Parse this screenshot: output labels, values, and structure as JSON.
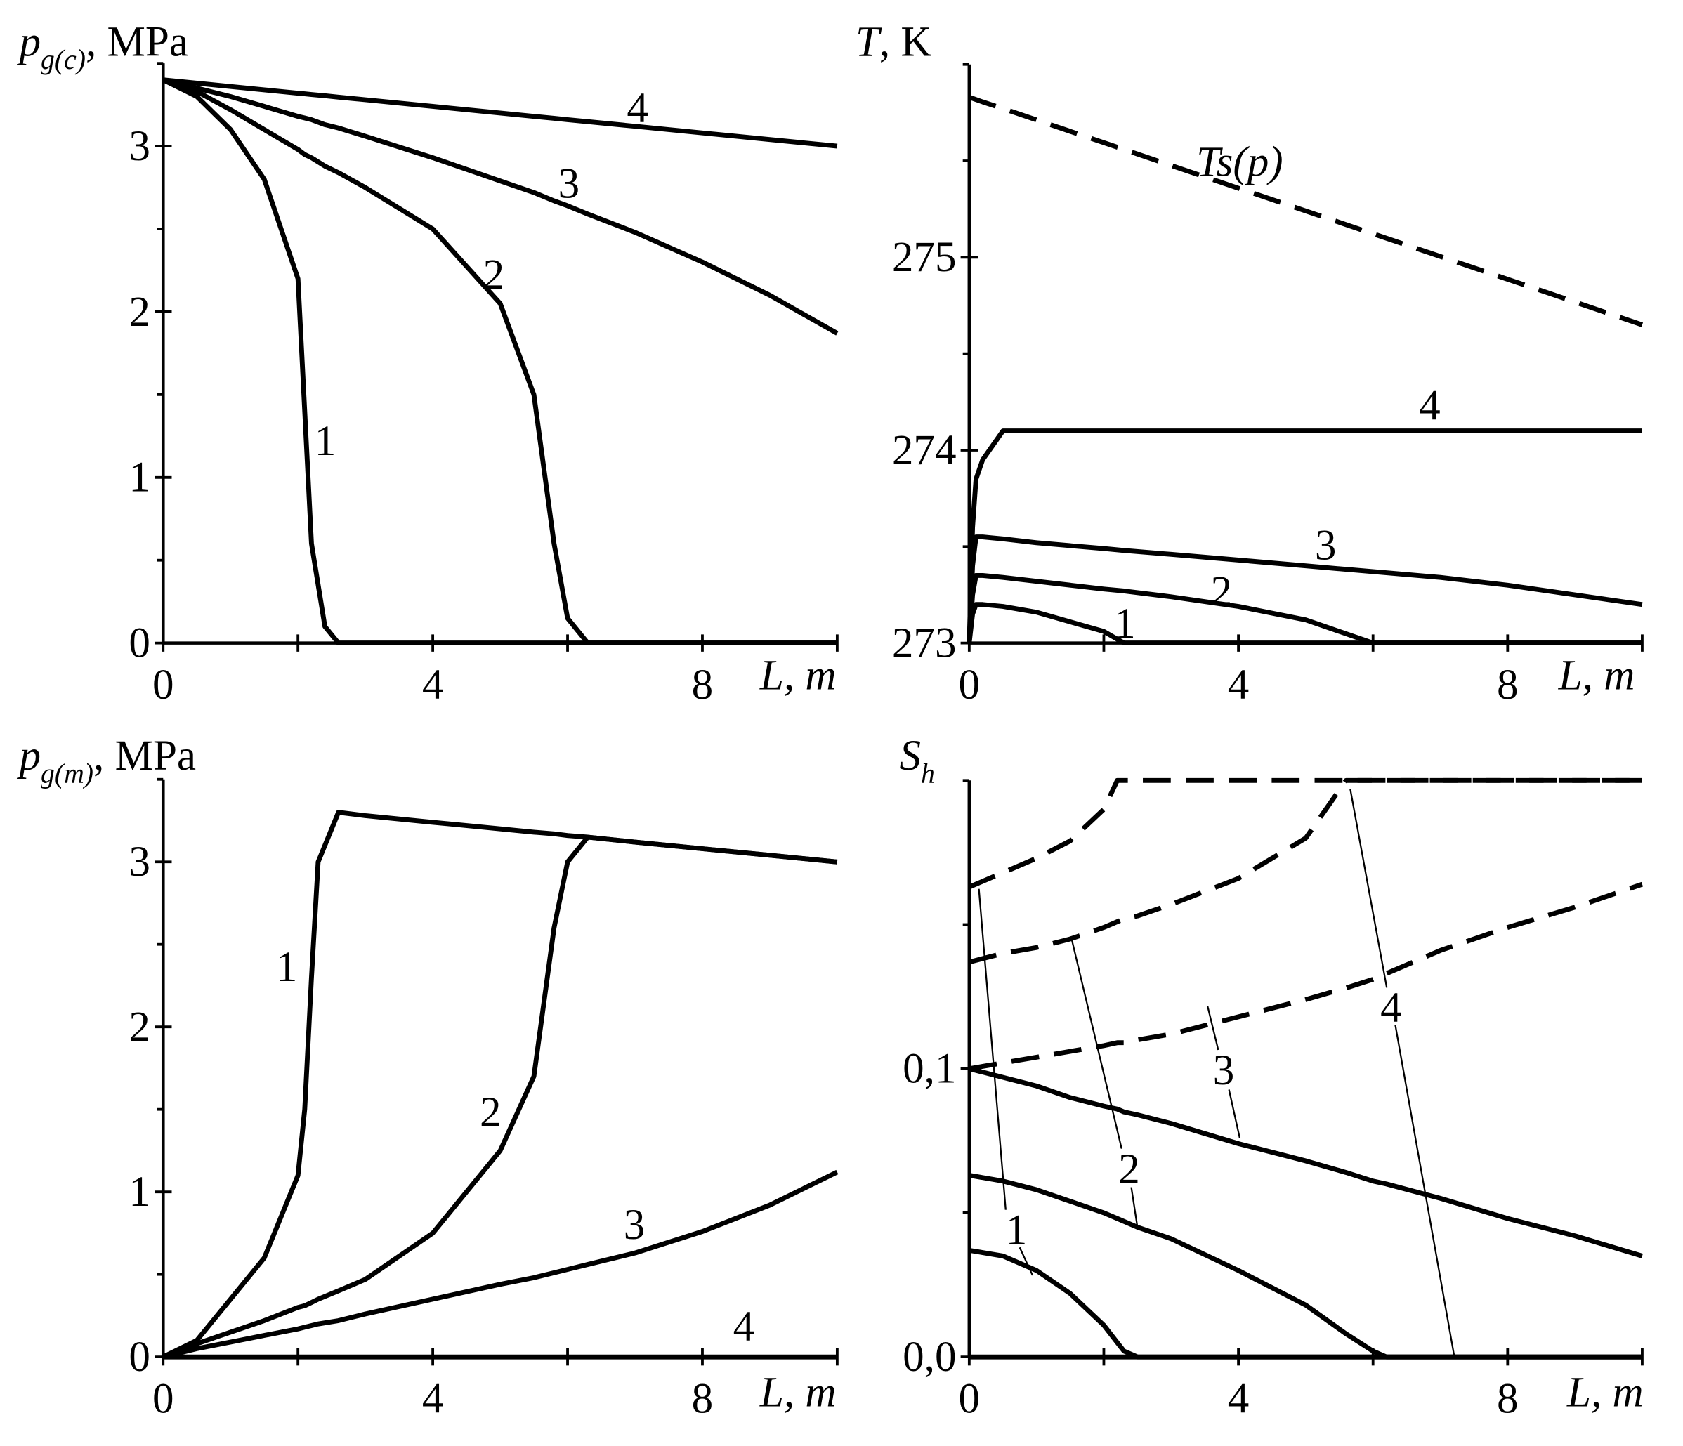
{
  "chart_data": [
    {
      "type": "line",
      "ylabel": {
        "symbol": "p",
        "subscript": "g(c)",
        "unit": ", MPa"
      },
      "xlabel": "L, m",
      "xlim": [
        0,
        10
      ],
      "xticks": [
        0,
        4,
        8
      ],
      "xminorticks": [
        2,
        6,
        10
      ],
      "ylim": [
        0,
        3.5
      ],
      "yticks": [
        0,
        1,
        2,
        3
      ],
      "yminorticks": [
        0.5,
        1.5,
        2.5,
        3.5
      ],
      "x": [
        0,
        0.5,
        1,
        1.5,
        2,
        2.1,
        2.2,
        2.4,
        2.6,
        3,
        4,
        5,
        5.5,
        5.8,
        6,
        6.3,
        7,
        8,
        9,
        10
      ],
      "series": [
        {
          "name": "1",
          "color": "#000",
          "values": [
            3.4,
            3.3,
            3.1,
            2.8,
            2.2,
            1.4,
            0.6,
            0.1,
            0,
            0,
            0,
            0,
            0,
            0,
            0,
            0,
            0,
            0,
            0,
            0
          ]
        },
        {
          "name": "2",
          "color": "#000",
          "values": [
            3.4,
            3.33,
            3.22,
            3.1,
            2.98,
            2.95,
            2.93,
            2.88,
            2.84,
            2.75,
            2.5,
            2.05,
            1.5,
            0.6,
            0.15,
            0,
            0,
            0,
            0,
            0
          ]
        },
        {
          "name": "3",
          "color": "#000",
          "values": [
            3.4,
            3.35,
            3.3,
            3.24,
            3.18,
            3.17,
            3.16,
            3.13,
            3.11,
            3.06,
            2.93,
            2.79,
            2.72,
            2.67,
            2.64,
            2.59,
            2.48,
            2.3,
            2.1,
            1.87
          ]
        },
        {
          "name": "4",
          "color": "#000",
          "values": [
            3.4,
            3.38,
            3.36,
            3.34,
            3.32,
            3.316,
            3.312,
            3.304,
            3.296,
            3.28,
            3.24,
            3.2,
            3.18,
            3.168,
            3.16,
            3.148,
            3.12,
            3.08,
            3.04,
            3.0
          ]
        }
      ]
    },
    {
      "type": "line",
      "ylabel": {
        "symbol": "T",
        "unit": ", K"
      },
      "xlabel": "L, m",
      "xlim": [
        0,
        10
      ],
      "xticks": [
        0,
        4,
        8
      ],
      "xminorticks": [
        2,
        6,
        10
      ],
      "ylim": [
        273,
        276
      ],
      "yticks": [
        273,
        274,
        275
      ],
      "yminorticks": [
        273.5,
        274.5,
        275.5,
        276
      ],
      "x": [
        0,
        0.05,
        0.1,
        0.2,
        0.5,
        1,
        2,
        2.3,
        3,
        4,
        5,
        6,
        7,
        8,
        9,
        10
      ],
      "series": [
        {
          "name": "Ts(p)",
          "color": "#000",
          "dash": true,
          "values": [
            275.83,
            275.824,
            275.818,
            275.806,
            275.771,
            275.712,
            275.594,
            275.559,
            275.476,
            275.358,
            275.24,
            275.122,
            275.004,
            274.886,
            274.768,
            274.65
          ]
        },
        {
          "name": "1",
          "color": "#000",
          "values": [
            273,
            273.15,
            273.2,
            273.2,
            273.19,
            273.16,
            273.06,
            273.0,
            273,
            273,
            273,
            273,
            273,
            273,
            273,
            273
          ]
        },
        {
          "name": "2",
          "color": "#000",
          "values": [
            273,
            273.25,
            273.35,
            273.35,
            273.34,
            273.32,
            273.28,
            273.27,
            273.24,
            273.19,
            273.12,
            273.0,
            273,
            273,
            273,
            273
          ]
        },
        {
          "name": "3",
          "color": "#000",
          "values": [
            273,
            273.4,
            273.55,
            273.55,
            273.54,
            273.52,
            273.49,
            273.48,
            273.46,
            273.43,
            273.4,
            273.37,
            273.34,
            273.3,
            273.25,
            273.2
          ]
        },
        {
          "name": "4",
          "color": "#000",
          "values": [
            273,
            273.6,
            273.85,
            273.95,
            274.1,
            274.1,
            274.1,
            274.1,
            274.1,
            274.1,
            274.1,
            274.1,
            274.1,
            274.1,
            274.1,
            274.1
          ]
        }
      ]
    },
    {
      "type": "line",
      "ylabel": {
        "symbol": "p",
        "subscript": "g(m)",
        "unit": ", MPa"
      },
      "xlabel": "L, m",
      "xlim": [
        0,
        10
      ],
      "xticks": [
        0,
        4,
        8
      ],
      "xminorticks": [
        2,
        6,
        10
      ],
      "ylim": [
        0,
        3.5
      ],
      "yticks": [
        0,
        1,
        2,
        3
      ],
      "yminorticks": [
        0.5,
        1.5,
        2.5,
        3.5
      ],
      "x": [
        0,
        0.5,
        1,
        1.5,
        2,
        2.1,
        2.2,
        2.3,
        2.6,
        3,
        4,
        5,
        5.5,
        5.8,
        6,
        6.3,
        7,
        8,
        9,
        10
      ],
      "series": [
        {
          "name": "1",
          "color": "#000",
          "values": [
            0,
            0.1,
            0.35,
            0.6,
            1.1,
            1.5,
            2.3,
            3.0,
            3.3,
            3.28,
            3.24,
            3.2,
            3.18,
            3.17,
            3.16,
            3.15,
            3.12,
            3.08,
            3.04,
            3.0
          ]
        },
        {
          "name": "2",
          "color": "#000",
          "values": [
            0,
            0.08,
            0.15,
            0.22,
            0.3,
            0.31,
            0.33,
            0.35,
            0.4,
            0.47,
            0.75,
            1.25,
            1.7,
            2.6,
            3.0,
            3.15,
            3.12,
            3.08,
            3.04,
            3.0
          ]
        },
        {
          "name": "3",
          "color": "#000",
          "values": [
            0,
            0.05,
            0.09,
            0.13,
            0.17,
            0.18,
            0.19,
            0.2,
            0.22,
            0.26,
            0.35,
            0.44,
            0.48,
            0.51,
            0.53,
            0.56,
            0.63,
            0.76,
            0.92,
            1.12
          ]
        },
        {
          "name": "4",
          "color": "#000",
          "values": [
            0,
            0,
            0,
            0,
            0,
            0,
            0,
            0,
            0,
            0,
            0,
            0,
            0,
            0,
            0,
            0,
            0,
            0,
            0,
            0
          ]
        }
      ]
    },
    {
      "type": "line",
      "ylabel": {
        "symbol": "S",
        "subscript": "h"
      },
      "xlabel": "L, m",
      "xlim": [
        0,
        10
      ],
      "xticks": [
        0,
        4,
        8
      ],
      "xminorticks": [
        2,
        6,
        10
      ],
      "ylim": [
        0,
        0.2
      ],
      "yticks": [
        {
          "value": 0,
          "label": "0,0"
        },
        {
          "value": 0.1,
          "label": "0,1"
        }
      ],
      "yminorticks": [
        0.05,
        0.15,
        0.2
      ],
      "x": [
        0,
        0.5,
        1,
        1.5,
        2,
        2.2,
        2.3,
        2.5,
        3,
        4,
        5,
        5.6,
        6,
        6.2,
        7,
        8,
        9,
        10
      ],
      "series": [
        {
          "name": "1",
          "color": "#000",
          "values": [
            0.037,
            0.035,
            0.03,
            0.022,
            0.011,
            0.005,
            0.002,
            0,
            0,
            0,
            0,
            0,
            0,
            0,
            0,
            0,
            0,
            0
          ]
        },
        {
          "name": "2",
          "color": "#000",
          "values": [
            0.063,
            0.061,
            0.058,
            0.054,
            0.05,
            0.048,
            0.047,
            0.045,
            0.041,
            0.03,
            0.018,
            0.008,
            0.002,
            0,
            0,
            0,
            0,
            0
          ]
        },
        {
          "name": "3",
          "color": "#000",
          "values": [
            0.1,
            0.097,
            0.094,
            0.09,
            0.087,
            0.086,
            0.085,
            0.084,
            0.081,
            0.074,
            0.068,
            0.064,
            0.061,
            0.06,
            0.055,
            0.048,
            0.042,
            0.035
          ]
        },
        {
          "name": "4",
          "color": "#000",
          "values": [
            0,
            0,
            0,
            0,
            0,
            0,
            0,
            0,
            0,
            0,
            0,
            0,
            0,
            0,
            0,
            0,
            0,
            0
          ]
        },
        {
          "color": "#000",
          "dash": true,
          "values": [
            0.163,
            0.168,
            0.173,
            0.179,
            0.19,
            0.2,
            0.2,
            0.2,
            0.2,
            0.2,
            0.2,
            0.2,
            0.2,
            0.2,
            0.2,
            0.2,
            0.2,
            0.2
          ]
        },
        {
          "color": "#000",
          "dash": true,
          "values": [
            0.137,
            0.14,
            0.142,
            0.145,
            0.149,
            0.151,
            0.152,
            0.153,
            0.157,
            0.166,
            0.18,
            0.2,
            0.2,
            0.2,
            0.2,
            0.2,
            0.2,
            0.2
          ]
        },
        {
          "color": "#000",
          "dash": true,
          "values": [
            0.1,
            0.102,
            0.104,
            0.106,
            0.108,
            0.109,
            0.109,
            0.11,
            0.112,
            0.118,
            0.124,
            0.128,
            0.131,
            0.133,
            0.141,
            0.149,
            0.156,
            0.164
          ]
        }
      ]
    }
  ]
}
